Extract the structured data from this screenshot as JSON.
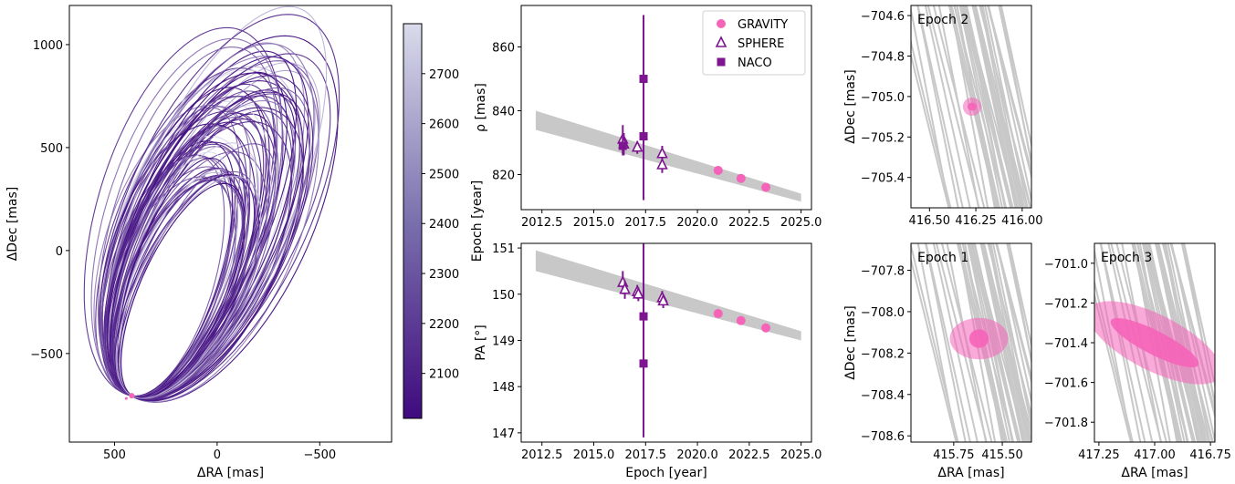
{
  "colors": {
    "gravity": "#f564b8",
    "naco": "#7d1690",
    "sphere": "#7d1690",
    "band": "#c8c8c8",
    "cmap_low": "#3f0a7e",
    "cmap_high": "#dadbeb"
  },
  "chart_data": [
    {
      "id": "orbits",
      "type": "line",
      "title": "",
      "xlabel": "ΔRA [mas]",
      "ylabel": "ΔDec [mas]",
      "xlim": [
        720,
        -850
      ],
      "ylim": [
        -930,
        1190
      ],
      "x_inverted": true,
      "xticks": [
        500,
        0,
        -500
      ],
      "xtick_labels": [
        "500",
        "0",
        "−500"
      ],
      "yticks": [
        -500,
        0,
        500,
        1000
      ],
      "ytick_labels": [
        "−500",
        "0",
        "500",
        "1000"
      ],
      "description": "Sample of posterior orbits colored by epoch",
      "companion_position": {
        "ra": 416,
        "dec": -705
      },
      "colorbar": {
        "label": "Epoch [year]",
        "range": [
          2010,
          2800
        ],
        "ticks": [
          2100,
          2200,
          2300,
          2400,
          2500,
          2600,
          2700
        ]
      }
    },
    {
      "id": "separation",
      "type": "scatter",
      "xlabel": "",
      "ylabel": "ρ [mas]",
      "xlim": [
        2011.5,
        2025.5
      ],
      "ylim": [
        809,
        873
      ],
      "xticks": [
        2012.5,
        2015.0,
        2017.5,
        2020.0,
        2022.5,
        2025.0
      ],
      "xtick_labels": [
        "2012.5",
        "2015.0",
        "2017.5",
        "2020.0",
        "2022.5",
        "2025.0"
      ],
      "yticks": [
        820,
        840,
        860
      ],
      "model_band": {
        "x": [
          2012.2,
          2025.0
        ],
        "lower": [
          834,
          811.5
        ],
        "upper": [
          840,
          814
        ]
      },
      "series": [
        {
          "name": "GRAVITY",
          "marker": "circle",
          "x": [
            2021.0,
            2022.1,
            2023.3
          ],
          "y": [
            821.3,
            818.8,
            816.0
          ],
          "err": [
            0.3,
            0.3,
            0.3
          ]
        },
        {
          "name": "SPHERE",
          "marker": "triangle",
          "x": [
            2016.4,
            2016.45,
            2017.1,
            2018.3,
            2018.3
          ],
          "y": [
            831,
            829.5,
            828.5,
            826.5,
            823
          ],
          "err": [
            4.5,
            3.5,
            2,
            2.5,
            2.5
          ]
        },
        {
          "name": "NACO",
          "marker": "square",
          "x": [
            2016.4,
            2017.4,
            2017.4
          ],
          "y": [
            829,
            832,
            850
          ],
          "err": [
            3,
            20,
            20
          ]
        }
      ],
      "legend": {
        "placement": "top-right",
        "entries": [
          "GRAVITY",
          "SPHERE",
          "NACO"
        ]
      }
    },
    {
      "id": "position_angle",
      "type": "scatter",
      "xlabel": "Epoch [year]",
      "ylabel": "PA [°]",
      "xlim": [
        2011.5,
        2025.5
      ],
      "ylim": [
        146.8,
        151.1
      ],
      "xticks": [
        2012.5,
        2015.0,
        2017.5,
        2020.0,
        2022.5,
        2025.0
      ],
      "xtick_labels": [
        "2012.5",
        "2015.0",
        "2017.5",
        "2020.0",
        "2022.5",
        "2025.0"
      ],
      "yticks": [
        147,
        148,
        149,
        150,
        151
      ],
      "model_band": {
        "x": [
          2012.2,
          2025.0
        ],
        "lower": [
          150.5,
          149.0
        ],
        "upper": [
          150.95,
          149.2
        ]
      },
      "series": [
        {
          "name": "GRAVITY",
          "marker": "circle",
          "x": [
            2021.0,
            2022.1,
            2023.3
          ],
          "y": [
            149.58,
            149.43,
            149.27
          ],
          "err": [
            0.02,
            0.02,
            0.02
          ]
        },
        {
          "name": "SPHERE",
          "marker": "triangle",
          "x": [
            2016.4,
            2016.5,
            2017.1,
            2017.15,
            2018.3,
            2018.35
          ],
          "y": [
            150.25,
            150.1,
            150.05,
            150.0,
            149.92,
            149.85
          ],
          "err": [
            0.25,
            0.2,
            0.15,
            0.15,
            0.15,
            0.15
          ]
        },
        {
          "name": "NACO",
          "marker": "square",
          "x": [
            2017.4,
            2017.4
          ],
          "y": [
            149.52,
            148.5
          ],
          "err": [
            1.6,
            1.6
          ]
        }
      ]
    },
    {
      "id": "epoch2",
      "type": "scatter",
      "annotation": "Epoch 2",
      "xlabel": "",
      "ylabel": "ΔDec [mas]",
      "xlim": [
        416.6,
        415.95
      ],
      "ylim": [
        -705.55,
        -704.55
      ],
      "xticks": [
        416.5,
        416.25,
        416.0
      ],
      "xtick_labels": [
        "416.50",
        "416.25",
        "416.00"
      ],
      "yticks": [
        -704.6,
        -704.8,
        -705.0,
        -705.2,
        -705.4
      ],
      "ytick_labels": [
        "−704.6",
        "−704.8",
        "−705.0",
        "−705.2",
        "−705.4"
      ],
      "ellipse": {
        "cx": 416.27,
        "cy": -705.05,
        "outer_rx": 0.05,
        "outer_ry": 0.045,
        "inner_rx": 0.025,
        "inner_ry": 0.02
      }
    },
    {
      "id": "epoch1",
      "type": "scatter",
      "annotation": "Epoch 1",
      "xlabel": "ΔRA [mas]",
      "ylabel": "ΔDec [mas]",
      "xlim": [
        415.97,
        415.35
      ],
      "ylim": [
        -708.63,
        -707.67
      ],
      "xticks": [
        415.75,
        415.5
      ],
      "xtick_labels": [
        "415.75",
        "415.50"
      ],
      "yticks": [
        -707.8,
        -708.0,
        -708.2,
        -708.4,
        -708.6
      ],
      "ytick_labels": [
        "−707.8",
        "−708.0",
        "−708.2",
        "−708.4",
        "−708.6"
      ],
      "ellipse": {
        "cx": 415.62,
        "cy": -708.13,
        "outer_rx": 0.15,
        "outer_ry": 0.1,
        "inner_rx": 0.05,
        "inner_ry": 0.045
      }
    },
    {
      "id": "epoch3",
      "type": "scatter",
      "annotation": "Epoch 3",
      "xlabel": "ΔRA [mas]",
      "ylabel": "",
      "xlim": [
        417.27,
        416.73
      ],
      "ylim": [
        -701.9,
        -700.9
      ],
      "xticks": [
        417.25,
        417.0,
        416.75
      ],
      "xtick_labels": [
        "417.25",
        "417.00",
        "416.75"
      ],
      "yticks": [
        -701.0,
        -701.2,
        -701.4,
        -701.6,
        -701.8
      ],
      "ytick_labels": [
        "−701.0",
        "−701.2",
        "−701.4",
        "−701.6",
        "−701.8"
      ],
      "ellipse": {
        "cx": 417.0,
        "cy": -701.4,
        "angle_deg": 27,
        "outer_rx": 0.33,
        "outer_ry": 0.14,
        "inner_rx": 0.22,
        "inner_ry": 0.06
      }
    }
  ]
}
